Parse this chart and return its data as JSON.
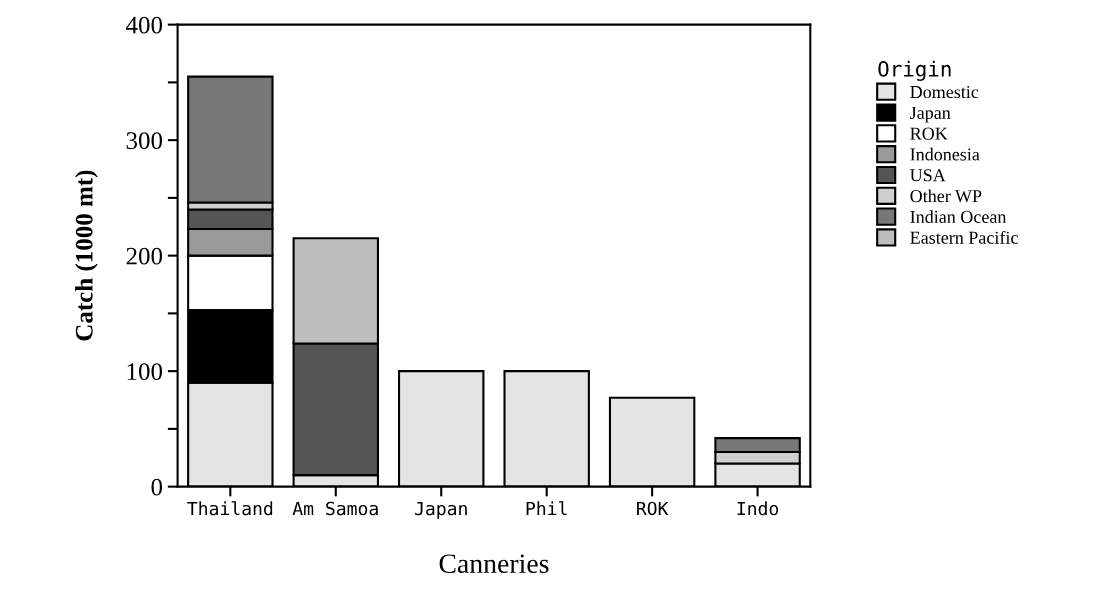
{
  "chart_data": {
    "type": "bar",
    "stacked": true,
    "xlabel": "Canneries",
    "ylabel": "Catch (1000 mt)",
    "legend_title": "Origin",
    "legend": "right",
    "categories": [
      "Thailand",
      "Am Samoa",
      "Japan",
      "Phil",
      "ROK",
      "Indo"
    ],
    "series": [
      {
        "name": "Domestic",
        "color": "#e4e4e4",
        "values": [
          90,
          10,
          100,
          100,
          77,
          20
        ]
      },
      {
        "name": "Japan",
        "color": "#000000",
        "values": [
          63,
          null,
          null,
          null,
          null,
          null
        ]
      },
      {
        "name": "ROK",
        "color": "#ffffff",
        "values": [
          47,
          null,
          null,
          null,
          null,
          null
        ]
      },
      {
        "name": "Indonesia",
        "color": "#9a9a9a",
        "values": [
          23,
          null,
          null,
          null,
          null,
          null
        ]
      },
      {
        "name": "USA",
        "color": "#555555",
        "values": [
          17,
          114,
          null,
          null,
          null,
          null
        ]
      },
      {
        "name": "Other WP",
        "color": "#cfcfcf",
        "values": [
          6,
          null,
          null,
          null,
          null,
          10
        ]
      },
      {
        "name": "Indian Ocean",
        "color": "#777777",
        "values": [
          109,
          null,
          null,
          null,
          null,
          12
        ]
      },
      {
        "name": "Eastern Pacific",
        "color": "#bdbdbd",
        "values": [
          null,
          91,
          null,
          null,
          null,
          null
        ]
      }
    ],
    "ylim": [
      0,
      400
    ],
    "yticks": [
      0,
      {
        "value": 50,
        "label": null
      },
      100,
      {
        "value": 150,
        "label": null
      },
      200,
      {
        "value": 250,
        "label": null
      },
      300,
      {
        "value": 350,
        "label": null
      },
      400
    ]
  }
}
